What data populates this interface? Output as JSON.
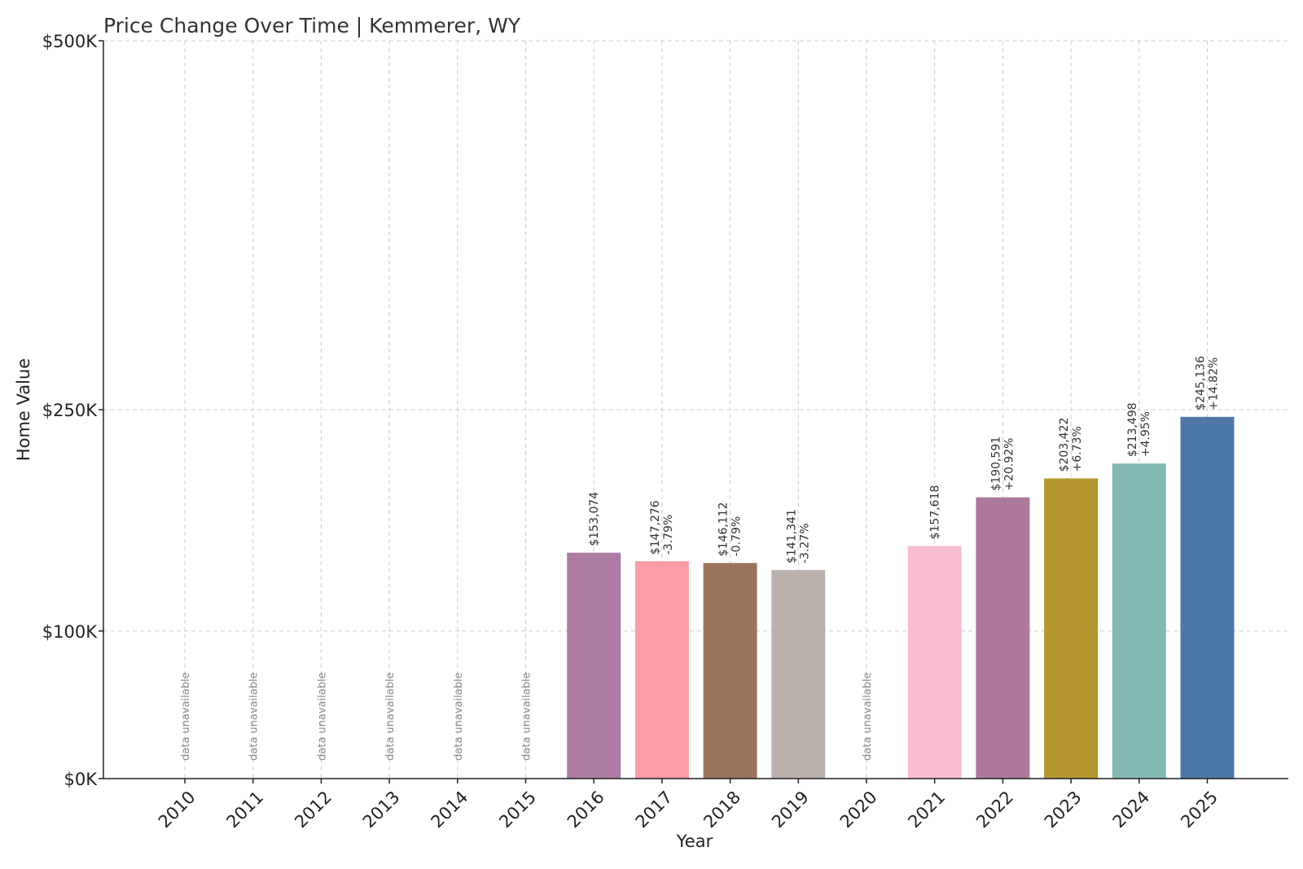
{
  "chart_data": {
    "type": "bar",
    "title": "Price Change Over Time | Kemmerer, WY",
    "xlabel": "Year",
    "ylabel": "Home Value",
    "ylim": [
      0,
      500000
    ],
    "y_ticks": [
      {
        "value": 0,
        "label": "$0K"
      },
      {
        "value": 100000,
        "label": "$100K"
      },
      {
        "value": 250000,
        "label": "$250K"
      },
      {
        "value": 500000,
        "label": "$500K"
      }
    ],
    "grid": true,
    "unavailable_label": "data unavailable",
    "bars": [
      {
        "year": "2010",
        "value": null,
        "value_label": "",
        "change_label": "",
        "color": ""
      },
      {
        "year": "2011",
        "value": null,
        "value_label": "",
        "change_label": "",
        "color": ""
      },
      {
        "year": "2012",
        "value": null,
        "value_label": "",
        "change_label": "",
        "color": ""
      },
      {
        "year": "2013",
        "value": null,
        "value_label": "",
        "change_label": "",
        "color": ""
      },
      {
        "year": "2014",
        "value": null,
        "value_label": "",
        "change_label": "",
        "color": ""
      },
      {
        "year": "2015",
        "value": null,
        "value_label": "",
        "change_label": "",
        "color": ""
      },
      {
        "year": "2016",
        "value": 153074,
        "value_label": "$153,074",
        "change_label": "",
        "color": "#ad7aa1"
      },
      {
        "year": "2017",
        "value": 147276,
        "value_label": "$147,276",
        "change_label": "-3.79%",
        "color": "#fd9ba6"
      },
      {
        "year": "2018",
        "value": 146112,
        "value_label": "$146,112",
        "change_label": "-0.79%",
        "color": "#9b735c"
      },
      {
        "year": "2019",
        "value": 141341,
        "value_label": "$141,341",
        "change_label": "-3.27%",
        "color": "#bab0ac"
      },
      {
        "year": "2020",
        "value": null,
        "value_label": "",
        "change_label": "",
        "color": ""
      },
      {
        "year": "2021",
        "value": 157618,
        "value_label": "$157,618",
        "change_label": "",
        "color": "#f9bdd0"
      },
      {
        "year": "2022",
        "value": 190591,
        "value_label": "$190,591",
        "change_label": "+20.92%",
        "color": "#ae789d"
      },
      {
        "year": "2023",
        "value": 203422,
        "value_label": "$203,422",
        "change_label": "+6.73%",
        "color": "#b5972e"
      },
      {
        "year": "2024",
        "value": 213498,
        "value_label": "$213,498",
        "change_label": "+4.95%",
        "color": "#82bab3"
      },
      {
        "year": "2025",
        "value": 245136,
        "value_label": "$245,136",
        "change_label": "+14.82%",
        "color": "#4e78a6"
      }
    ]
  }
}
